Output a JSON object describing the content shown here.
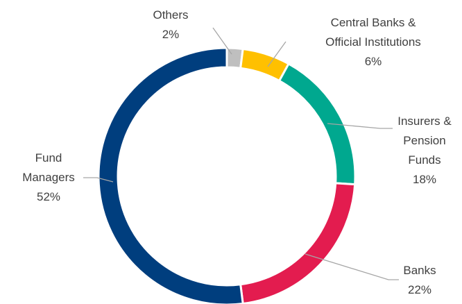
{
  "chart_data": {
    "type": "donut",
    "categories": [
      "Others",
      "Central Banks & Official Institutions",
      "Insurers & Pension Funds",
      "Banks",
      "Fund Managers"
    ],
    "values": [
      2,
      6,
      18,
      22,
      52
    ],
    "value_labels": [
      "2%",
      "6%",
      "18%",
      "22%",
      "52%"
    ],
    "colors": [
      "#bfbfbf",
      "#ffc000",
      "#00a88f",
      "#e31c4f",
      "#003e7e"
    ]
  }
}
